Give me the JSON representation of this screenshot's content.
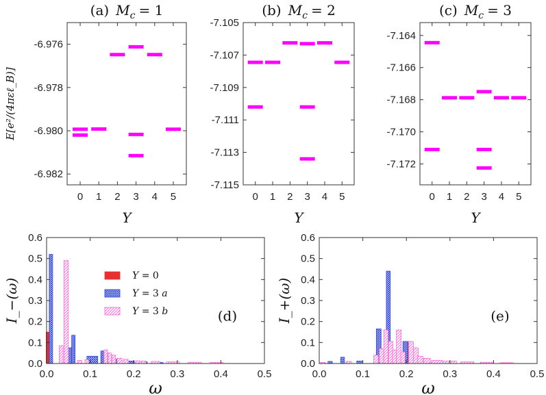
{
  "chart_data": [
    {
      "id": "a",
      "type": "scatter",
      "marker": "horizontal-bar",
      "color": "#ff00ff",
      "title_prefix": "(a)",
      "title_var": "M",
      "title_sub": "c",
      "title_rest": "= 1",
      "ylabel": "E[e²/(4πεℓ_B)]",
      "xlabel": "Y",
      "xlim": [
        -0.7,
        5.7
      ],
      "ylim": [
        -6.9825,
        -6.975
      ],
      "xticks": [
        0,
        1,
        2,
        3,
        4,
        5
      ],
      "yticks": [
        -6.976,
        -6.978,
        -6.98,
        -6.982
      ],
      "yticklabels": [
        "-6.976",
        "-6.978",
        "-6.980",
        "-6.982"
      ],
      "points": [
        {
          "x": 0,
          "y": -6.97993
        },
        {
          "x": 0,
          "y": -6.9802
        },
        {
          "x": 1,
          "y": -6.97992
        },
        {
          "x": 2,
          "y": -6.97648
        },
        {
          "x": 3,
          "y": -6.97612
        },
        {
          "x": 3,
          "y": -6.98017
        },
        {
          "x": 3,
          "y": -6.98115
        },
        {
          "x": 4,
          "y": -6.97648
        },
        {
          "x": 5,
          "y": -6.97993
        }
      ]
    },
    {
      "id": "b",
      "type": "scatter",
      "marker": "horizontal-bar",
      "color": "#ff00ff",
      "title_prefix": "(b)",
      "title_var": "M",
      "title_sub": "c",
      "title_rest": "= 2",
      "xlabel": "Y",
      "xlim": [
        -0.7,
        5.7
      ],
      "ylim": [
        -7.115,
        -7.105
      ],
      "xticks": [
        0,
        1,
        2,
        3,
        4,
        5
      ],
      "yticks": [
        -7.105,
        -7.107,
        -7.109,
        -7.111,
        -7.113,
        -7.115
      ],
      "yticklabels": [
        "-7.105",
        "-7.107",
        "-7.109",
        "-7.111",
        "-7.113",
        "-7.115"
      ],
      "points": [
        {
          "x": 0,
          "y": -7.10745
        },
        {
          "x": 0,
          "y": -7.1102
        },
        {
          "x": 1,
          "y": -7.10745
        },
        {
          "x": 2,
          "y": -7.10625
        },
        {
          "x": 3,
          "y": -7.1063
        },
        {
          "x": 3,
          "y": -7.1102
        },
        {
          "x": 3,
          "y": -7.1134
        },
        {
          "x": 4,
          "y": -7.10625
        },
        {
          "x": 5,
          "y": -7.10745
        }
      ]
    },
    {
      "id": "c",
      "type": "scatter",
      "marker": "horizontal-bar",
      "color": "#ff00ff",
      "title_prefix": "(c)",
      "title_var": "M",
      "title_sub": "c",
      "title_rest": "= 3",
      "xlabel": "Y",
      "xlim": [
        -0.7,
        5.7
      ],
      "ylim": [
        -7.1733,
        -7.1632
      ],
      "xticks": [
        0,
        1,
        2,
        3,
        4,
        5
      ],
      "yticks": [
        -7.164,
        -7.166,
        -7.168,
        -7.17,
        -7.172
      ],
      "yticklabels": [
        "-7.164",
        "-7.166",
        "-7.168",
        "-7.170",
        "-7.172"
      ],
      "points": [
        {
          "x": 0,
          "y": -7.16445
        },
        {
          "x": 0,
          "y": -7.1711
        },
        {
          "x": 1,
          "y": -7.16788
        },
        {
          "x": 2,
          "y": -7.16788
        },
        {
          "x": 3,
          "y": -7.1675
        },
        {
          "x": 3,
          "y": -7.1711
        },
        {
          "x": 3,
          "y": -7.17225
        },
        {
          "x": 4,
          "y": -7.16788
        },
        {
          "x": 5,
          "y": -7.16788
        }
      ]
    },
    {
      "id": "d",
      "type": "bar",
      "panel_label": "(d)",
      "ylabel": "I_−(ω)",
      "xlabel": "ω",
      "xlim": [
        0,
        0.5
      ],
      "ylim": [
        0,
        0.6
      ],
      "xticks": [
        0.0,
        0.1,
        0.2,
        0.3,
        0.4,
        0.5
      ],
      "xticklabels": [
        "0.0",
        "0.1",
        "0.2",
        "0.3",
        "0.4",
        "0.5"
      ],
      "yticks": [
        0.0,
        0.1,
        0.2,
        0.3,
        0.4,
        0.5,
        0.6
      ],
      "yticklabels": [
        "0.0",
        "0.1",
        "0.2",
        "0.3",
        "0.4",
        "0.5",
        "0.6"
      ],
      "legend_position": "top-center",
      "series": [
        {
          "name": "Y = 0",
          "label_parts": [
            "Y",
            " = 0"
          ],
          "color": "#e83030",
          "fill": "solid",
          "bars": [
            {
              "x": 0.0025,
              "w": 0.007,
              "v": 0.15
            },
            {
              "x": 0.0585,
              "w": 0.007,
              "v": 0.075
            }
          ]
        },
        {
          "name": "Y = 3 a",
          "label_parts": [
            "Y",
            " = 3 ",
            "a"
          ],
          "color": "#2a3fe0",
          "fill": "crosshatch",
          "bars": [
            {
              "x": 0.01,
              "w": 0.008,
              "v": 0.52
            },
            {
              "x": 0.0525,
              "w": 0.01,
              "v": 0.075
            },
            {
              "x": 0.0615,
              "w": 0.008,
              "v": 0.135
            },
            {
              "x": 0.105,
              "w": 0.025,
              "v": 0.035
            },
            {
              "x": 0.1285,
              "w": 0.008,
              "v": 0.06
            },
            {
              "x": 0.1445,
              "w": 0.008,
              "v": 0.04
            },
            {
              "x": 0.16,
              "w": 0.01,
              "v": 0.02
            },
            {
              "x": 0.195,
              "w": 0.012,
              "v": 0.012
            },
            {
              "x": 0.225,
              "w": 0.012,
              "v": 0.008
            },
            {
              "x": 0.26,
              "w": 0.015,
              "v": 0.005
            }
          ]
        },
        {
          "name": "Y = 3 b",
          "label_parts": [
            "Y",
            " = 3 ",
            "b"
          ],
          "color": "#ff5cd6",
          "fill": "diagonal",
          "bars": [
            {
              "x": 0.0335,
              "w": 0.009,
              "v": 0.085
            },
            {
              "x": 0.045,
              "w": 0.01,
              "v": 0.49
            },
            {
              "x": 0.076,
              "w": 0.01,
              "v": 0.015
            },
            {
              "x": 0.0925,
              "w": 0.009,
              "v": 0.018
            },
            {
              "x": 0.136,
              "w": 0.008,
              "v": 0.065
            },
            {
              "x": 0.145,
              "w": 0.008,
              "v": 0.05
            },
            {
              "x": 0.1545,
              "w": 0.008,
              "v": 0.04
            },
            {
              "x": 0.1675,
              "w": 0.011,
              "v": 0.025
            },
            {
              "x": 0.1815,
              "w": 0.011,
              "v": 0.02
            },
            {
              "x": 0.2085,
              "w": 0.011,
              "v": 0.013
            },
            {
              "x": 0.2225,
              "w": 0.011,
              "v": 0.012
            },
            {
              "x": 0.25,
              "w": 0.02,
              "v": 0.01
            },
            {
              "x": 0.29,
              "w": 0.03,
              "v": 0.008
            },
            {
              "x": 0.34,
              "w": 0.03,
              "v": 0.006
            },
            {
              "x": 0.39,
              "w": 0.03,
              "v": 0.005
            }
          ]
        }
      ]
    },
    {
      "id": "e",
      "type": "bar",
      "panel_label": "(e)",
      "ylabel": "I_+(ω)",
      "xlabel": "ω",
      "xlim": [
        0,
        0.5
      ],
      "ylim": [
        0,
        0.6
      ],
      "xticks": [
        0.0,
        0.1,
        0.2,
        0.3,
        0.4,
        0.5
      ],
      "xticklabels": [
        "0.0",
        "0.1",
        "0.2",
        "0.3",
        "0.4",
        "0.5"
      ],
      "yticks": [
        0.0,
        0.1,
        0.2,
        0.3,
        0.4,
        0.5,
        0.6
      ],
      "yticklabels": [
        "0.0",
        "0.1",
        "0.2",
        "0.3",
        "0.4",
        "0.5",
        "0.6"
      ],
      "series": [
        {
          "name": "Y = 0",
          "color": "#e83030",
          "fill": "solid",
          "bars": [
            {
              "x": 0.1625,
              "w": 0.006,
              "v": 0.075
            },
            {
              "x": 0.2015,
              "w": 0.008,
              "v": 0.105
            }
          ]
        },
        {
          "name": "Y = 3 a",
          "color": "#2a3fe0",
          "fill": "crosshatch",
          "bars": [
            {
              "x": 0.025,
              "w": 0.01,
              "v": 0.01
            },
            {
              "x": 0.0535,
              "w": 0.009,
              "v": 0.03
            },
            {
              "x": 0.092,
              "w": 0.012,
              "v": 0.012
            },
            {
              "x": 0.1365,
              "w": 0.011,
              "v": 0.165
            },
            {
              "x": 0.1585,
              "w": 0.009,
              "v": 0.44
            },
            {
              "x": 0.1975,
              "w": 0.011,
              "v": 0.105
            }
          ]
        },
        {
          "name": "Y = 3 b",
          "color": "#ff5cd6",
          "fill": "diagonal",
          "bars": [
            {
              "x": 0.008,
              "w": 0.012,
              "v": 0.005
            },
            {
              "x": 0.068,
              "w": 0.012,
              "v": 0.01
            },
            {
              "x": 0.1305,
              "w": 0.011,
              "v": 0.04
            },
            {
              "x": 0.143,
              "w": 0.01,
              "v": 0.07
            },
            {
              "x": 0.153,
              "w": 0.01,
              "v": 0.16
            },
            {
              "x": 0.164,
              "w": 0.01,
              "v": 0.105
            },
            {
              "x": 0.173,
              "w": 0.01,
              "v": 0.065
            },
            {
              "x": 0.1825,
              "w": 0.011,
              "v": 0.16
            },
            {
              "x": 0.192,
              "w": 0.01,
              "v": 0.055
            },
            {
              "x": 0.2105,
              "w": 0.011,
              "v": 0.105
            },
            {
              "x": 0.2215,
              "w": 0.011,
              "v": 0.075
            },
            {
              "x": 0.232,
              "w": 0.012,
              "v": 0.035
            },
            {
              "x": 0.2475,
              "w": 0.015,
              "v": 0.025
            },
            {
              "x": 0.27,
              "w": 0.025,
              "v": 0.015
            },
            {
              "x": 0.3,
              "w": 0.03,
              "v": 0.012
            },
            {
              "x": 0.34,
              "w": 0.03,
              "v": 0.008
            },
            {
              "x": 0.385,
              "w": 0.03,
              "v": 0.006
            },
            {
              "x": 0.43,
              "w": 0.03,
              "v": 0.004
            }
          ]
        }
      ]
    }
  ]
}
